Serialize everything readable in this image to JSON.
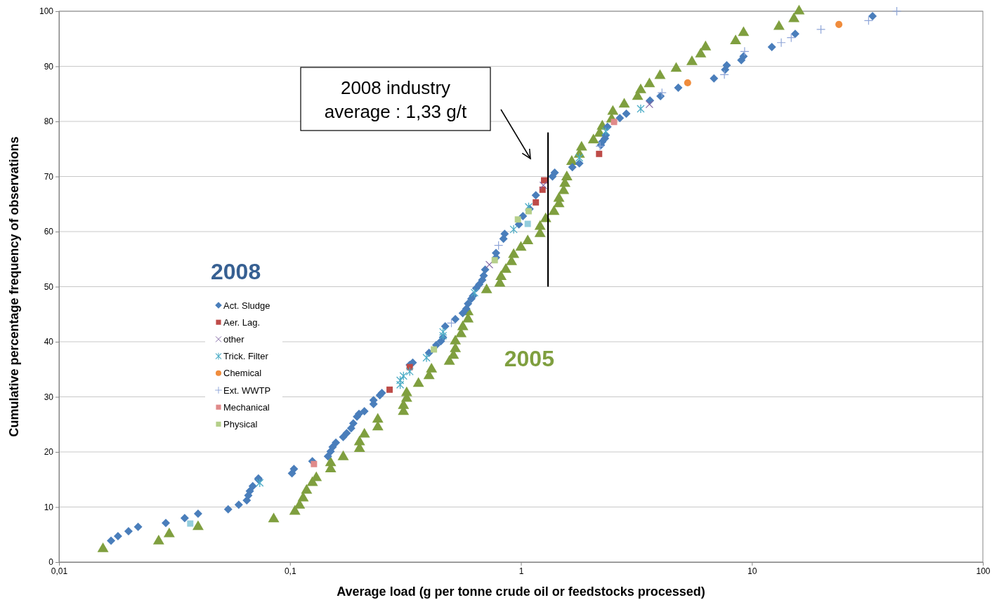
{
  "chart_data": {
    "type": "scatter",
    "xlabel": "Average load (g per tonne crude oil or feedstocks processed)",
    "ylabel": "Cumulative percentage frequency of observations",
    "log": "x",
    "grid": "y",
    "legend": "left",
    "legend_title": "2008",
    "xlim": [
      0.01,
      100
    ],
    "xticks": [
      {
        "value": 0.01,
        "label": "0,01"
      },
      {
        "value": 0.1,
        "label": "0,1"
      },
      1,
      10,
      100
    ],
    "ylim": [
      0,
      100
    ],
    "yticks": [
      0,
      10,
      20,
      30,
      40,
      50,
      60,
      70,
      80,
      90,
      100
    ],
    "annotations": [
      "2008 industry\naverage : 1,33 g/t"
    ],
    "series": [
      {
        "name": "Act. Sludge",
        "color": "#4a7ebb",
        "marker": "diamond",
        "x": [
          0.0168,
          0.018,
          0.02,
          0.022,
          0.029,
          0.035,
          0.04,
          0.054,
          0.06,
          0.065,
          0.066,
          0.067,
          0.069,
          0.073,
          0.073,
          0.102,
          0.104,
          0.125,
          0.146,
          0.15,
          0.153,
          0.158,
          0.17,
          0.176,
          0.184,
          0.188,
          0.195,
          0.199,
          0.21,
          0.23,
          0.23,
          0.245,
          0.25,
          0.33,
          0.34,
          0.4,
          0.43,
          0.45,
          0.46,
          0.47,
          0.52,
          0.56,
          0.58,
          0.59,
          0.61,
          0.62,
          0.64,
          0.66,
          0.68,
          0.69,
          0.7,
          0.78,
          0.78,
          0.84,
          0.85,
          0.98,
          1.02,
          1.09,
          1.16,
          1.37,
          1.4,
          1.67,
          1.79,
          2.22,
          2.25,
          2.31,
          2.33,
          2.37,
          2.68,
          2.86,
          3.62,
          4.02,
          4.8,
          6.85,
          7.66,
          7.78,
          9.0,
          9.2,
          12.2,
          15.4,
          33.3
        ],
        "values": [
          3.9,
          4.7,
          5.6,
          6.4,
          7.1,
          8.0,
          8.8,
          9.6,
          10.4,
          11.2,
          12.1,
          12.9,
          13.8,
          15.0,
          15.2,
          16.1,
          16.9,
          18.3,
          19.2,
          20.1,
          20.9,
          21.7,
          22.7,
          23.4,
          24.3,
          25.2,
          26.4,
          26.9,
          27.4,
          28.7,
          29.4,
          30.3,
          30.7,
          35.8,
          36.2,
          38.0,
          39.4,
          40.1,
          40.8,
          42.8,
          44.1,
          45.2,
          46.0,
          46.9,
          47.8,
          48.3,
          49.7,
          50.4,
          51.2,
          52.0,
          53.1,
          55.3,
          56.1,
          58.7,
          59.6,
          61.3,
          62.8,
          64.1,
          66.6,
          70.0,
          70.7,
          71.7,
          72.4,
          75.7,
          76.3,
          76.9,
          77.5,
          79.0,
          80.6,
          81.4,
          83.8,
          84.6,
          86.1,
          87.8,
          89.4,
          90.2,
          91.1,
          91.8,
          93.5,
          95.9,
          99.1
        ]
      },
      {
        "name": "Aer. Lag.",
        "color": "#be4b48",
        "marker": "square",
        "x": [
          0.27,
          0.33,
          1.16,
          1.24,
          1.26,
          2.18
        ],
        "values": [
          31.3,
          35.4,
          65.3,
          67.6,
          69.3,
          74.1
        ]
      },
      {
        "name": "other",
        "color": "#8064a2",
        "marker": "x",
        "x": [
          0.73,
          1.25,
          3.6
        ],
        "values": [
          54.0,
          68.4,
          83.1
        ]
      },
      {
        "name": "Trick. Filter",
        "color": "#4bacc6",
        "marker": "cross",
        "x": [
          0.074,
          0.3,
          0.3,
          0.31,
          0.33,
          0.39,
          0.46,
          0.46,
          0.63,
          0.93,
          1.08,
          1.79,
          2.33,
          3.3
        ],
        "values": [
          14.4,
          32.2,
          33.0,
          33.8,
          34.6,
          37.1,
          41.1,
          41.8,
          48.9,
          60.4,
          64.5,
          73.4,
          78.2,
          82.3
        ]
      },
      {
        "name": "Chemical",
        "color": "#f08c3c",
        "marker": "circle",
        "x": [
          5.27,
          23.8
        ],
        "values": [
          87.0,
          97.6
        ]
      },
      {
        "name": "Ext. WWTP",
        "color": "#8ea5d8",
        "x": [
          0.5,
          0.8,
          2.2,
          4.08,
          7.6,
          9.3,
          13.4,
          14.8,
          19.9,
          32,
          42.4
        ],
        "values": [
          43.4,
          57.5,
          75.5,
          85.2,
          88.5,
          92.7,
          94.3,
          95.2,
          96.7,
          98.3,
          100
        ]
      },
      {
        "name": "Mechanical",
        "color": "#e08a8a",
        "marker": "square",
        "x": [
          0.127,
          2.53
        ],
        "values": [
          17.8,
          79.9
        ]
      },
      {
        "name": "Physical",
        "color": "#b5cf8a",
        "marker": "square",
        "x": [
          0.42,
          0.77,
          0.97,
          1.08
        ],
        "values": [
          38.6,
          54.8,
          62.2,
          63.7
        ]
      },
      {
        "color": "#93cddd",
        "marker": "square",
        "x": [
          0.037,
          1.07
        ],
        "values": [
          7.0,
          61.4
        ]
      },
      {
        "name": "2005",
        "color": "#7f9f3f",
        "marker": "triangle",
        "x": [
          0.0155,
          0.027,
          0.03,
          0.04,
          0.085,
          0.105,
          0.11,
          0.114,
          0.118,
          0.125,
          0.13,
          0.15,
          0.15,
          0.17,
          0.2,
          0.2,
          0.21,
          0.24,
          0.24,
          0.31,
          0.31,
          0.32,
          0.32,
          0.36,
          0.4,
          0.41,
          0.49,
          0.51,
          0.52,
          0.52,
          0.55,
          0.56,
          0.59,
          0.59,
          0.71,
          0.81,
          0.82,
          0.86,
          0.91,
          0.93,
          1.0,
          1.07,
          1.21,
          1.21,
          1.28,
          1.39,
          1.46,
          1.46,
          1.53,
          1.55,
          1.58,
          1.66,
          1.79,
          1.83,
          2.06,
          2.19,
          2.25,
          2.47,
          2.5,
          2.8,
          3.2,
          3.3,
          3.6,
          4.0,
          4.7,
          5.5,
          6.0,
          6.3,
          8.5,
          9.2,
          13.1,
          15.2,
          16.0
        ],
        "values": [
          2.4,
          3.8,
          5.1,
          6.4,
          7.8,
          9.2,
          10.3,
          11.6,
          13.0,
          14.4,
          15.3,
          16.9,
          18.0,
          19.1,
          20.6,
          21.8,
          23.2,
          24.5,
          25.9,
          27.3,
          28.4,
          29.7,
          30.7,
          32.4,
          33.8,
          35.0,
          36.4,
          37.5,
          38.7,
          40.1,
          41.4,
          42.7,
          44.1,
          45.4,
          49.4,
          50.6,
          51.8,
          53.1,
          54.5,
          55.8,
          57.1,
          58.3,
          59.6,
          60.9,
          62.3,
          63.6,
          65.0,
          66.0,
          67.4,
          68.7,
          69.9,
          72.7,
          74.0,
          75.3,
          76.6,
          77.8,
          79.1,
          80.4,
          81.8,
          83.1,
          84.5,
          85.7,
          86.8,
          88.3,
          89.6,
          90.8,
          92.2,
          93.5,
          94.6,
          96.1,
          97.2,
          98.6,
          100.0
        ]
      },
      {
        "type": "line",
        "color": "#000000",
        "marker": "none",
        "x": [
          1.31,
          1.31
        ],
        "values": [
          78,
          50
        ]
      }
    ]
  }
}
